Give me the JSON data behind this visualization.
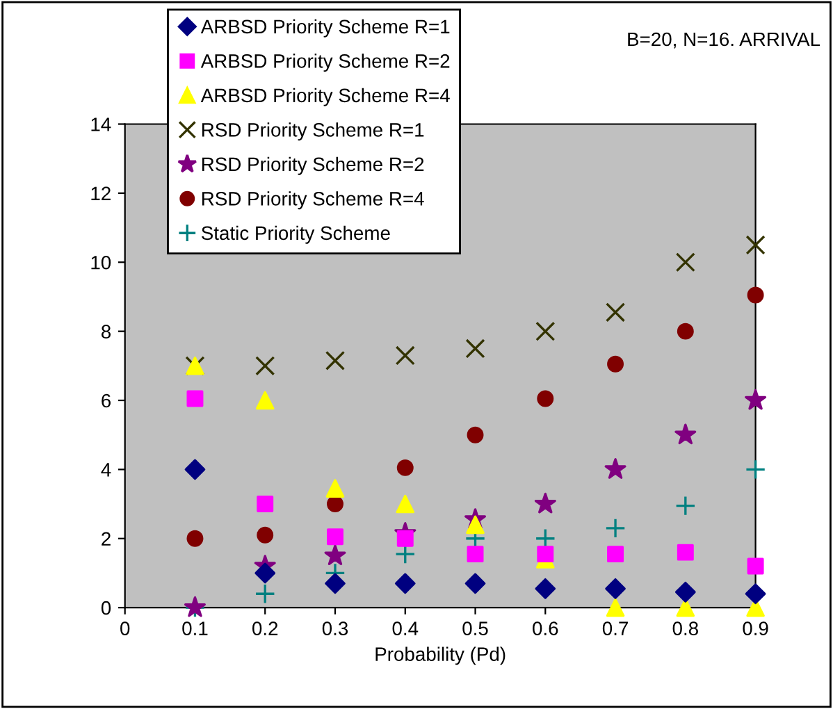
{
  "chart_data": {
    "type": "scatter",
    "xlabel": "Probability (Pd)",
    "annotations": [
      "B=20, N=16. ARRIVAL"
    ],
    "x": [
      0.1,
      0.2,
      0.3,
      0.4,
      0.5,
      0.6,
      0.7,
      0.8,
      0.9
    ],
    "series": [
      {
        "name": "ARBSD Priority Scheme R=1",
        "color": "#000080",
        "marker": "diamond",
        "values": [
          4,
          1,
          0.7,
          0.7,
          0.7,
          0.55,
          0.55,
          0.45,
          0.4
        ]
      },
      {
        "name": "ARBSD Priority Scheme R=2",
        "color": "#ff00ff",
        "marker": "square",
        "values": [
          6.05,
          3,
          2.05,
          2,
          1.55,
          1.55,
          1.55,
          1.6,
          1.2
        ]
      },
      {
        "name": "ARBSD Priority Scheme R=4",
        "color": "#ffff00",
        "marker": "triangle",
        "values": [
          7,
          6,
          3.45,
          3,
          2.4,
          1.4,
          0,
          0,
          0
        ]
      },
      {
        "name": "RSD Priority Scheme R=1",
        "color": "#333300",
        "marker": "cross",
        "values": [
          7,
          7,
          7.15,
          7.3,
          7.5,
          8,
          8.55,
          10,
          10.5
        ]
      },
      {
        "name": "RSD Priority Scheme R=2",
        "color": "#800080",
        "marker": "star",
        "values": [
          0,
          1.2,
          1.5,
          2.15,
          2.55,
          3,
          4,
          5,
          6
        ]
      },
      {
        "name": "RSD Priority Scheme R=4",
        "color": "#800000",
        "marker": "circle",
        "values": [
          2,
          2.1,
          3,
          4.05,
          5,
          6.05,
          7.05,
          8,
          9.05
        ]
      },
      {
        "name": "Static Priority Scheme",
        "color": "#008080",
        "marker": "plus",
        "values": [
          0,
          0.4,
          1,
          1.55,
          2,
          2,
          2.3,
          2.95,
          4
        ]
      }
    ],
    "xlim": [
      0,
      0.9
    ],
    "xticks": [
      0,
      0.1,
      0.2,
      0.3,
      0.4,
      0.5,
      0.6,
      0.7,
      0.8,
      0.9
    ],
    "ylim": [
      0,
      14
    ],
    "yticks": [
      0,
      2,
      4,
      6,
      8,
      10,
      12,
      14
    ],
    "grid": false,
    "legend": "top left"
  }
}
